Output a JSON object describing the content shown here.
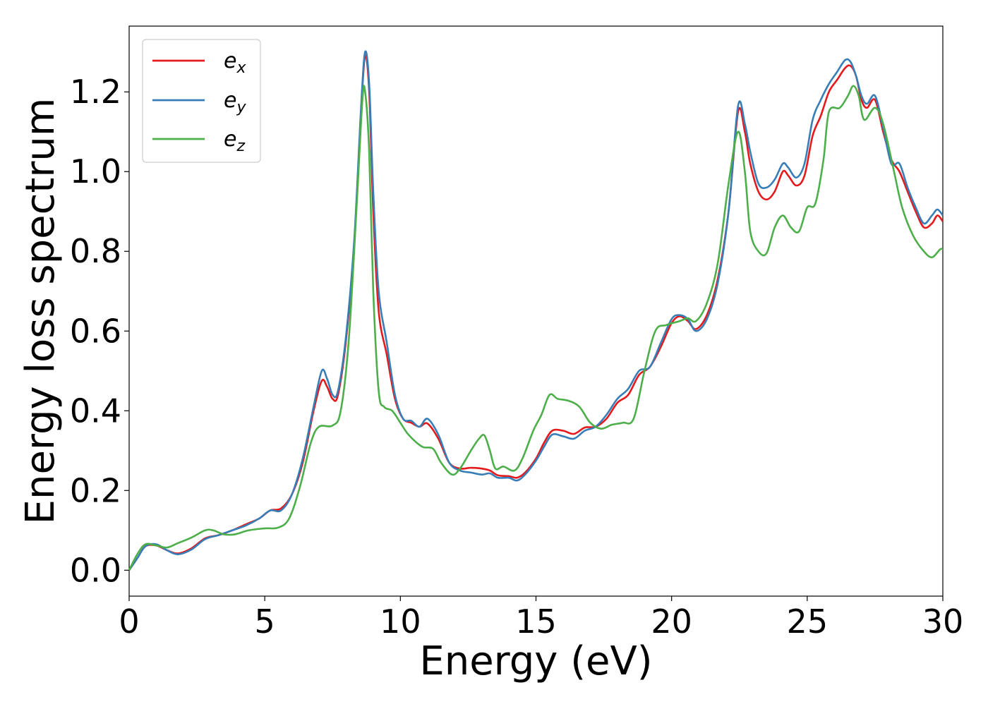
{
  "chart_data": {
    "type": "line",
    "title": "",
    "xlabel": "Energy (eV)",
    "ylabel": "Energy loss spectrum",
    "xlim": [
      0,
      30
    ],
    "ylim": [
      -0.065,
      1.365
    ],
    "xticks": [
      0,
      5,
      10,
      15,
      20,
      25,
      30
    ],
    "xtick_labels": [
      "0",
      "5",
      "10",
      "15",
      "20",
      "25",
      "30"
    ],
    "yticks": [
      0.0,
      0.2,
      0.4,
      0.6,
      0.8,
      1.0,
      1.2
    ],
    "ytick_labels": [
      "0.0",
      "0.2",
      "0.4",
      "0.6",
      "0.8",
      "1.0",
      "1.2"
    ],
    "grid": false,
    "legend_position": "upper-left",
    "series": [
      {
        "name": "e_x",
        "legend_base": "e",
        "legend_sub": "x",
        "color": "#e41a1c",
        "points": [
          [
            0,
            0
          ],
          [
            0.3,
            0.03
          ],
          [
            0.6,
            0.06
          ],
          [
            1.0,
            0.062
          ],
          [
            1.4,
            0.05
          ],
          [
            1.8,
            0.042
          ],
          [
            2.3,
            0.055
          ],
          [
            2.8,
            0.08
          ],
          [
            3.3,
            0.088
          ],
          [
            3.8,
            0.1
          ],
          [
            4.3,
            0.115
          ],
          [
            4.8,
            0.13
          ],
          [
            5.2,
            0.15
          ],
          [
            5.6,
            0.155
          ],
          [
            6.0,
            0.19
          ],
          [
            6.4,
            0.27
          ],
          [
            6.8,
            0.4
          ],
          [
            7.1,
            0.475
          ],
          [
            7.3,
            0.46
          ],
          [
            7.5,
            0.43
          ],
          [
            7.7,
            0.44
          ],
          [
            8.0,
            0.58
          ],
          [
            8.3,
            0.82
          ],
          [
            8.55,
            1.15
          ],
          [
            8.7,
            1.29
          ],
          [
            8.85,
            1.2
          ],
          [
            9.0,
            0.9
          ],
          [
            9.2,
            0.65
          ],
          [
            9.5,
            0.54
          ],
          [
            9.8,
            0.43
          ],
          [
            10.1,
            0.38
          ],
          [
            10.4,
            0.37
          ],
          [
            10.7,
            0.36
          ],
          [
            11.0,
            0.368
          ],
          [
            11.4,
            0.33
          ],
          [
            11.8,
            0.27
          ],
          [
            12.2,
            0.255
          ],
          [
            12.6,
            0.257
          ],
          [
            13.0,
            0.255
          ],
          [
            13.3,
            0.25
          ],
          [
            13.6,
            0.238
          ],
          [
            14.0,
            0.236
          ],
          [
            14.3,
            0.232
          ],
          [
            14.6,
            0.245
          ],
          [
            15.0,
            0.28
          ],
          [
            15.3,
            0.32
          ],
          [
            15.6,
            0.35
          ],
          [
            16.0,
            0.35
          ],
          [
            16.4,
            0.342
          ],
          [
            16.8,
            0.358
          ],
          [
            17.2,
            0.36
          ],
          [
            17.6,
            0.38
          ],
          [
            18.0,
            0.42
          ],
          [
            18.4,
            0.44
          ],
          [
            18.8,
            0.49
          ],
          [
            19.2,
            0.51
          ],
          [
            19.6,
            0.56
          ],
          [
            20.0,
            0.62
          ],
          [
            20.3,
            0.637
          ],
          [
            20.6,
            0.625
          ],
          [
            20.9,
            0.605
          ],
          [
            21.3,
            0.64
          ],
          [
            21.7,
            0.73
          ],
          [
            22.1,
            0.9
          ],
          [
            22.45,
            1.15
          ],
          [
            22.7,
            1.1
          ],
          [
            22.9,
            1.02
          ],
          [
            23.2,
            0.95
          ],
          [
            23.5,
            0.93
          ],
          [
            23.8,
            0.95
          ],
          [
            24.1,
            1.0
          ],
          [
            24.3,
            0.99
          ],
          [
            24.6,
            0.965
          ],
          [
            24.9,
            0.99
          ],
          [
            25.2,
            1.09
          ],
          [
            25.5,
            1.14
          ],
          [
            25.8,
            1.2
          ],
          [
            26.1,
            1.23
          ],
          [
            26.4,
            1.26
          ],
          [
            26.6,
            1.265
          ],
          [
            26.8,
            1.24
          ],
          [
            27.0,
            1.18
          ],
          [
            27.2,
            1.16
          ],
          [
            27.5,
            1.18
          ],
          [
            27.8,
            1.1
          ],
          [
            28.1,
            1.03
          ],
          [
            28.4,
            1.0
          ],
          [
            28.7,
            0.95
          ],
          [
            29.0,
            0.9
          ],
          [
            29.3,
            0.86
          ],
          [
            29.6,
            0.87
          ],
          [
            29.8,
            0.89
          ],
          [
            30.0,
            0.875
          ]
        ]
      },
      {
        "name": "e_y",
        "legend_base": "e",
        "legend_sub": "y",
        "color": "#377eb8",
        "points": [
          [
            0,
            0
          ],
          [
            0.3,
            0.03
          ],
          [
            0.6,
            0.06
          ],
          [
            1.0,
            0.065
          ],
          [
            1.4,
            0.05
          ],
          [
            1.8,
            0.04
          ],
          [
            2.3,
            0.052
          ],
          [
            2.8,
            0.078
          ],
          [
            3.3,
            0.088
          ],
          [
            3.8,
            0.1
          ],
          [
            4.3,
            0.112
          ],
          [
            4.8,
            0.13
          ],
          [
            5.2,
            0.15
          ],
          [
            5.6,
            0.15
          ],
          [
            6.0,
            0.19
          ],
          [
            6.4,
            0.28
          ],
          [
            6.8,
            0.41
          ],
          [
            7.1,
            0.5
          ],
          [
            7.3,
            0.48
          ],
          [
            7.5,
            0.44
          ],
          [
            7.7,
            0.45
          ],
          [
            8.0,
            0.59
          ],
          [
            8.3,
            0.83
          ],
          [
            8.55,
            1.16
          ],
          [
            8.7,
            1.3
          ],
          [
            8.85,
            1.22
          ],
          [
            9.0,
            0.95
          ],
          [
            9.2,
            0.7
          ],
          [
            9.5,
            0.57
          ],
          [
            9.8,
            0.44
          ],
          [
            10.1,
            0.38
          ],
          [
            10.4,
            0.375
          ],
          [
            10.7,
            0.36
          ],
          [
            11.0,
            0.38
          ],
          [
            11.4,
            0.34
          ],
          [
            11.8,
            0.27
          ],
          [
            12.2,
            0.25
          ],
          [
            12.6,
            0.245
          ],
          [
            13.0,
            0.24
          ],
          [
            13.3,
            0.243
          ],
          [
            13.6,
            0.232
          ],
          [
            14.0,
            0.232
          ],
          [
            14.3,
            0.225
          ],
          [
            14.6,
            0.24
          ],
          [
            15.0,
            0.275
          ],
          [
            15.3,
            0.31
          ],
          [
            15.6,
            0.34
          ],
          [
            16.0,
            0.336
          ],
          [
            16.4,
            0.33
          ],
          [
            16.8,
            0.35
          ],
          [
            17.2,
            0.36
          ],
          [
            17.6,
            0.39
          ],
          [
            18.0,
            0.43
          ],
          [
            18.4,
            0.455
          ],
          [
            18.8,
            0.5
          ],
          [
            19.2,
            0.51
          ],
          [
            19.6,
            0.57
          ],
          [
            20.0,
            0.63
          ],
          [
            20.3,
            0.64
          ],
          [
            20.6,
            0.63
          ],
          [
            20.9,
            0.6
          ],
          [
            21.3,
            0.63
          ],
          [
            21.7,
            0.72
          ],
          [
            22.1,
            0.9
          ],
          [
            22.45,
            1.165
          ],
          [
            22.7,
            1.12
          ],
          [
            22.9,
            1.05
          ],
          [
            23.2,
            0.97
          ],
          [
            23.5,
            0.96
          ],
          [
            23.8,
            0.98
          ],
          [
            24.1,
            1.02
          ],
          [
            24.3,
            1.01
          ],
          [
            24.6,
            0.985
          ],
          [
            24.9,
            1.02
          ],
          [
            25.2,
            1.13
          ],
          [
            25.5,
            1.18
          ],
          [
            25.8,
            1.22
          ],
          [
            26.1,
            1.25
          ],
          [
            26.4,
            1.28
          ],
          [
            26.6,
            1.275
          ],
          [
            26.8,
            1.24
          ],
          [
            27.0,
            1.19
          ],
          [
            27.2,
            1.17
          ],
          [
            27.5,
            1.19
          ],
          [
            27.8,
            1.11
          ],
          [
            28.1,
            1.02
          ],
          [
            28.4,
            1.02
          ],
          [
            28.7,
            0.96
          ],
          [
            29.0,
            0.91
          ],
          [
            29.3,
            0.87
          ],
          [
            29.6,
            0.89
          ],
          [
            29.8,
            0.905
          ],
          [
            30.0,
            0.89
          ]
        ]
      },
      {
        "name": "e_z",
        "legend_base": "e",
        "legend_sub": "z",
        "color": "#4daf4a",
        "points": [
          [
            0,
            0
          ],
          [
            0.3,
            0.04
          ],
          [
            0.6,
            0.065
          ],
          [
            1.0,
            0.062
          ],
          [
            1.4,
            0.057
          ],
          [
            1.8,
            0.068
          ],
          [
            2.3,
            0.082
          ],
          [
            2.8,
            0.1
          ],
          [
            3.1,
            0.1
          ],
          [
            3.5,
            0.09
          ],
          [
            3.9,
            0.09
          ],
          [
            4.4,
            0.1
          ],
          [
            5.0,
            0.105
          ],
          [
            5.5,
            0.107
          ],
          [
            5.9,
            0.13
          ],
          [
            6.3,
            0.21
          ],
          [
            6.7,
            0.32
          ],
          [
            7.0,
            0.36
          ],
          [
            7.5,
            0.363
          ],
          [
            7.8,
            0.4
          ],
          [
            8.1,
            0.58
          ],
          [
            8.4,
            0.93
          ],
          [
            8.6,
            1.18
          ],
          [
            8.7,
            1.2
          ],
          [
            8.85,
            1.05
          ],
          [
            9.0,
            0.7
          ],
          [
            9.2,
            0.45
          ],
          [
            9.4,
            0.41
          ],
          [
            9.7,
            0.4
          ],
          [
            10.0,
            0.37
          ],
          [
            10.3,
            0.34
          ],
          [
            10.8,
            0.31
          ],
          [
            11.2,
            0.305
          ],
          [
            11.5,
            0.27
          ],
          [
            11.9,
            0.24
          ],
          [
            12.2,
            0.255
          ],
          [
            12.6,
            0.3
          ],
          [
            12.9,
            0.33
          ],
          [
            13.1,
            0.338
          ],
          [
            13.3,
            0.3
          ],
          [
            13.5,
            0.255
          ],
          [
            13.8,
            0.26
          ],
          [
            14.2,
            0.25
          ],
          [
            14.5,
            0.28
          ],
          [
            14.9,
            0.35
          ],
          [
            15.2,
            0.39
          ],
          [
            15.5,
            0.44
          ],
          [
            15.8,
            0.43
          ],
          [
            16.2,
            0.425
          ],
          [
            16.6,
            0.41
          ],
          [
            17.0,
            0.37
          ],
          [
            17.4,
            0.355
          ],
          [
            17.8,
            0.365
          ],
          [
            18.2,
            0.37
          ],
          [
            18.6,
            0.38
          ],
          [
            19.0,
            0.5
          ],
          [
            19.4,
            0.6
          ],
          [
            19.8,
            0.615
          ],
          [
            20.3,
            0.625
          ],
          [
            20.6,
            0.632
          ],
          [
            20.9,
            0.625
          ],
          [
            21.3,
            0.67
          ],
          [
            21.7,
            0.77
          ],
          [
            22.1,
            0.97
          ],
          [
            22.45,
            1.1
          ],
          [
            22.7,
            1.0
          ],
          [
            22.9,
            0.85
          ],
          [
            23.2,
            0.8
          ],
          [
            23.5,
            0.795
          ],
          [
            23.8,
            0.86
          ],
          [
            24.1,
            0.89
          ],
          [
            24.4,
            0.86
          ],
          [
            24.7,
            0.85
          ],
          [
            25.0,
            0.91
          ],
          [
            25.3,
            0.92
          ],
          [
            25.6,
            1.03
          ],
          [
            25.8,
            1.15
          ],
          [
            26.2,
            1.16
          ],
          [
            26.5,
            1.19
          ],
          [
            26.7,
            1.215
          ],
          [
            26.9,
            1.19
          ],
          [
            27.1,
            1.13
          ],
          [
            27.5,
            1.16
          ],
          [
            27.8,
            1.12
          ],
          [
            28.2,
            1.0
          ],
          [
            28.5,
            0.91
          ],
          [
            28.9,
            0.84
          ],
          [
            29.3,
            0.8
          ],
          [
            29.6,
            0.785
          ],
          [
            29.9,
            0.805
          ],
          [
            30.0,
            0.805
          ]
        ]
      }
    ]
  }
}
